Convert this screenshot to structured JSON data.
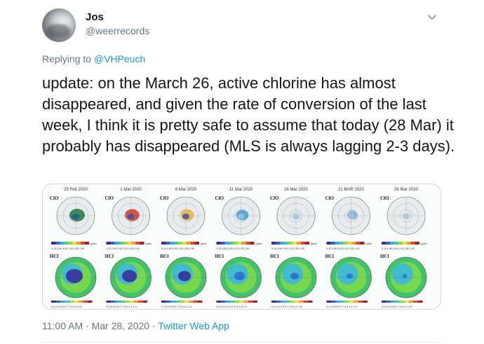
{
  "tweet": {
    "author_name": "Jos",
    "author_handle": "@weerrecords",
    "reply_prefix": "Replying to ",
    "reply_to": "@VHPeuch",
    "text": "update: on the March 26, active chlorine has almost disappeared, and given the rate of conversion of the last week, I think it is pretty safe to assume that today (28 Mar) it probably has disappeared (MLS is always lagging 2-3 days).",
    "time": "11:00 AM",
    "date": "Mar 28, 2020",
    "separator": " · ",
    "source": "Twitter Web App"
  },
  "media": {
    "dates": [
      "25 Feb 2020",
      "1 Mar 2020",
      "6 Mar 2020",
      "11 Mar 2020",
      "16 Mar 2020",
      "21 MAR 2020",
      "26 Mar 2020"
    ],
    "clo_label": "ClO",
    "hcl_label": "HCl",
    "unit_label": "ppbv",
    "clo_scale": "0.10 0.60 0.90 1.10 1.50 1.90",
    "hcl_scale": "0.1 0.3 0.5 0.7 0.9 1.1 1.3"
  },
  "colors": {
    "accent": "#1b95e0",
    "secondary_text": "#657786",
    "primary_text": "#14171a"
  }
}
